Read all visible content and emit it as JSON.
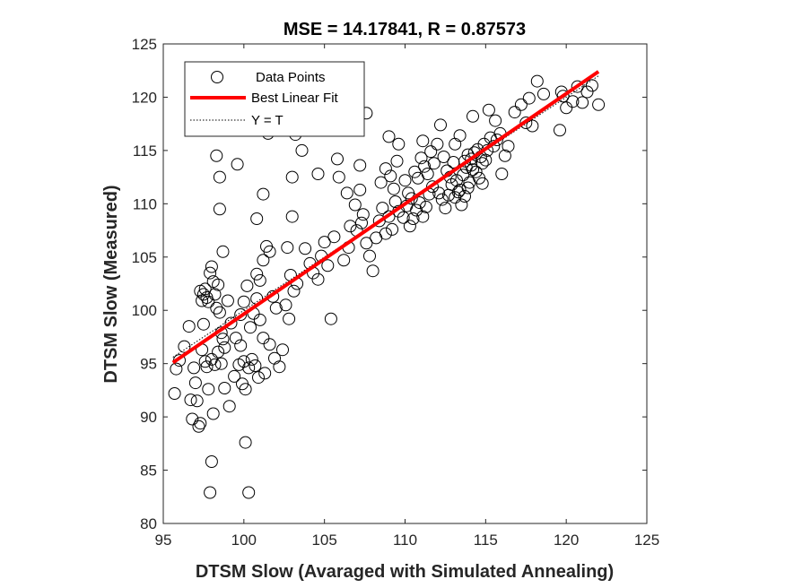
{
  "chart_data": {
    "type": "scatter",
    "title": "MSE = 14.17841, R = 0.87573",
    "xlabel": "DTSM Slow (Avaraged with Simulated Annealing)",
    "ylabel": "DTSM Slow (Measured)",
    "xlim": [
      95,
      125
    ],
    "ylim": [
      80,
      125
    ],
    "xticks": [
      "95",
      "100",
      "105",
      "110",
      "115",
      "120",
      "125"
    ],
    "yticks": [
      "80",
      "85",
      "90",
      "95",
      "100",
      "105",
      "110",
      "115",
      "120",
      "125"
    ],
    "grid": false,
    "legend_position": "top-left",
    "colors": {
      "points": "#000000",
      "fit": "#ff0000",
      "identity": "#000000",
      "axes": "#262626"
    },
    "series": [
      {
        "name": "Data Points",
        "kind": "scatter",
        "points": [
          [
            95.7,
            92.2
          ],
          [
            95.8,
            94.5
          ],
          [
            96.0,
            95.3
          ],
          [
            96.3,
            96.6
          ],
          [
            96.6,
            98.5
          ],
          [
            96.7,
            91.6
          ],
          [
            96.8,
            89.8
          ],
          [
            96.9,
            94.6
          ],
          [
            97.0,
            93.2
          ],
          [
            97.1,
            91.5
          ],
          [
            97.2,
            89.1
          ],
          [
            97.3,
            89.4
          ],
          [
            97.4,
            96.3
          ],
          [
            97.5,
            98.7
          ],
          [
            97.6,
            95.2
          ],
          [
            97.7,
            94.7
          ],
          [
            97.8,
            92.6
          ],
          [
            97.9,
            82.9
          ],
          [
            98.0,
            85.8
          ],
          [
            98.1,
            90.3
          ],
          [
            97.3,
            101.8
          ],
          [
            97.4,
            100.9
          ],
          [
            97.5,
            101.5
          ],
          [
            97.6,
            102.0
          ],
          [
            97.7,
            101.2
          ],
          [
            97.8,
            100.8
          ],
          [
            97.9,
            103.5
          ],
          [
            98.0,
            104.1
          ],
          [
            98.1,
            102.7
          ],
          [
            98.2,
            101.5
          ],
          [
            98.3,
            100.2
          ],
          [
            98.4,
            102.4
          ],
          [
            98.5,
            99.8
          ],
          [
            98.6,
            97.9
          ],
          [
            98.7,
            97.3
          ],
          [
            98.8,
            96.5
          ],
          [
            98.0,
            95.4
          ],
          [
            98.2,
            94.9
          ],
          [
            98.4,
            96.1
          ],
          [
            98.6,
            95.0
          ],
          [
            98.7,
            105.5
          ],
          [
            98.5,
            109.5
          ],
          [
            98.5,
            112.5
          ],
          [
            98.3,
            114.5
          ],
          [
            99.6,
            113.7
          ],
          [
            99.0,
            100.9
          ],
          [
            99.2,
            98.8
          ],
          [
            99.5,
            97.4
          ],
          [
            99.8,
            96.7
          ],
          [
            100.0,
            95.2
          ],
          [
            98.8,
            92.7
          ],
          [
            99.1,
            91.0
          ],
          [
            99.4,
            93.8
          ],
          [
            99.7,
            94.9
          ],
          [
            99.9,
            93.1
          ],
          [
            100.1,
            92.6
          ],
          [
            100.3,
            94.6
          ],
          [
            100.5,
            95.4
          ],
          [
            100.7,
            94.8
          ],
          [
            100.9,
            93.7
          ],
          [
            100.1,
            87.6
          ],
          [
            100.3,
            82.9
          ],
          [
            99.8,
            99.6
          ],
          [
            100.0,
            100.8
          ],
          [
            100.2,
            102.3
          ],
          [
            100.4,
            98.4
          ],
          [
            100.6,
            99.7
          ],
          [
            100.8,
            101.1
          ],
          [
            101.0,
            99.1
          ],
          [
            101.2,
            97.4
          ],
          [
            100.8,
            103.4
          ],
          [
            101.0,
            102.8
          ],
          [
            101.2,
            104.7
          ],
          [
            101.4,
            106.0
          ],
          [
            101.6,
            105.5
          ],
          [
            101.8,
            101.3
          ],
          [
            102.0,
            100.2
          ],
          [
            101.3,
            94.1
          ],
          [
            101.6,
            96.8
          ],
          [
            101.9,
            95.5
          ],
          [
            100.8,
            108.6
          ],
          [
            101.2,
            110.9
          ],
          [
            101.5,
            116.6
          ],
          [
            102.2,
            94.7
          ],
          [
            102.4,
            96.3
          ],
          [
            102.6,
            100.5
          ],
          [
            102.8,
            99.2
          ],
          [
            102.9,
            103.3
          ],
          [
            103.1,
            101.8
          ],
          [
            103.3,
            102.5
          ],
          [
            103.0,
            112.5
          ],
          [
            103.2,
            116.5
          ],
          [
            102.7,
            105.9
          ],
          [
            103.0,
            108.8
          ],
          [
            103.4,
            117.5
          ],
          [
            103.6,
            115.0
          ],
          [
            103.8,
            105.8
          ],
          [
            104.1,
            104.4
          ],
          [
            104.3,
            103.5
          ],
          [
            104.6,
            102.9
          ],
          [
            104.8,
            105.1
          ],
          [
            105.0,
            106.4
          ],
          [
            105.2,
            104.2
          ],
          [
            105.4,
            99.2
          ],
          [
            105.6,
            106.9
          ],
          [
            105.8,
            114.2
          ],
          [
            105.9,
            112.5
          ],
          [
            106.2,
            104.7
          ],
          [
            106.5,
            105.9
          ],
          [
            106.6,
            107.9
          ],
          [
            104.6,
            112.8
          ],
          [
            107.0,
            107.5
          ],
          [
            107.3,
            108.2
          ],
          [
            107.6,
            106.3
          ],
          [
            107.8,
            105.1
          ],
          [
            108.0,
            103.7
          ],
          [
            108.2,
            106.8
          ],
          [
            106.9,
            109.9
          ],
          [
            107.2,
            111.3
          ],
          [
            107.4,
            109.0
          ],
          [
            107.6,
            118.5
          ],
          [
            107.2,
            113.6
          ],
          [
            106.4,
            111.0
          ],
          [
            108.4,
            108.4
          ],
          [
            108.6,
            109.6
          ],
          [
            108.8,
            107.2
          ],
          [
            109.0,
            108.8
          ],
          [
            109.2,
            107.6
          ],
          [
            109.4,
            110.2
          ],
          [
            109.6,
            109.3
          ],
          [
            108.5,
            112.0
          ],
          [
            108.8,
            113.3
          ],
          [
            109.1,
            112.6
          ],
          [
            109.3,
            111.4
          ],
          [
            109.5,
            114.0
          ],
          [
            109.0,
            116.3
          ],
          [
            109.6,
            115.6
          ],
          [
            110.0,
            112.2
          ],
          [
            110.2,
            111.0
          ],
          [
            110.4,
            110.5
          ],
          [
            109.9,
            108.7
          ],
          [
            110.1,
            109.8
          ],
          [
            110.3,
            107.9
          ],
          [
            110.5,
            108.6
          ],
          [
            110.7,
            109.4
          ],
          [
            110.9,
            110.1
          ],
          [
            111.1,
            108.8
          ],
          [
            111.3,
            109.7
          ],
          [
            111.5,
            110.9
          ],
          [
            111.7,
            111.6
          ],
          [
            110.6,
            113.0
          ],
          [
            110.8,
            112.4
          ],
          [
            111.0,
            114.3
          ],
          [
            111.2,
            113.5
          ],
          [
            111.4,
            112.8
          ],
          [
            111.6,
            114.9
          ],
          [
            111.8,
            113.8
          ],
          [
            112.0,
            115.6
          ],
          [
            112.2,
            117.4
          ],
          [
            112.4,
            114.4
          ],
          [
            111.1,
            115.9
          ],
          [
            112.6,
            113.1
          ],
          [
            112.8,
            112.5
          ],
          [
            113.0,
            113.9
          ],
          [
            113.2,
            112.2
          ],
          [
            113.4,
            111.3
          ],
          [
            113.6,
            112.7
          ],
          [
            113.8,
            113.4
          ],
          [
            114.0,
            112.0
          ],
          [
            114.2,
            113.2
          ],
          [
            112.1,
            111.0
          ],
          [
            112.3,
            110.4
          ],
          [
            112.5,
            109.6
          ],
          [
            112.7,
            110.8
          ],
          [
            112.9,
            111.8
          ],
          [
            113.1,
            110.6
          ],
          [
            113.3,
            111.1
          ],
          [
            113.5,
            109.9
          ],
          [
            113.7,
            110.7
          ],
          [
            113.9,
            111.5
          ],
          [
            114.1,
            114.2
          ],
          [
            114.3,
            114.8
          ],
          [
            114.5,
            115.1
          ],
          [
            114.7,
            114.4
          ],
          [
            114.9,
            115.6
          ],
          [
            115.1,
            115.0
          ],
          [
            115.3,
            116.2
          ],
          [
            115.5,
            115.4
          ],
          [
            115.7,
            116.0
          ],
          [
            115.9,
            116.6
          ],
          [
            113.7,
            114.0
          ],
          [
            113.9,
            114.6
          ],
          [
            114.1,
            113.6
          ],
          [
            114.4,
            113.0
          ],
          [
            114.6,
            112.4
          ],
          [
            114.8,
            113.8
          ],
          [
            115.0,
            114.1
          ],
          [
            113.1,
            115.6
          ],
          [
            113.4,
            116.4
          ],
          [
            114.2,
            118.2
          ],
          [
            115.2,
            118.8
          ],
          [
            115.6,
            117.8
          ],
          [
            114.8,
            111.9
          ],
          [
            116.2,
            114.5
          ],
          [
            116.4,
            115.4
          ],
          [
            116.0,
            112.8
          ],
          [
            116.8,
            118.6
          ],
          [
            117.2,
            119.3
          ],
          [
            117.5,
            117.6
          ],
          [
            117.7,
            119.9
          ],
          [
            117.9,
            117.3
          ],
          [
            118.2,
            121.5
          ],
          [
            119.6,
            116.9
          ],
          [
            119.8,
            120.1
          ],
          [
            120.0,
            119.0
          ],
          [
            120.4,
            119.6
          ],
          [
            120.7,
            121.0
          ],
          [
            121.0,
            119.5
          ],
          [
            121.3,
            120.5
          ],
          [
            121.6,
            121.1
          ],
          [
            122.0,
            119.3
          ],
          [
            119.7,
            120.5
          ],
          [
            118.6,
            120.3
          ]
        ]
      },
      {
        "name": "Best Linear Fit",
        "kind": "line",
        "points": [
          [
            95.6,
            95.1
          ],
          [
            122.0,
            122.4
          ]
        ]
      },
      {
        "name": "Y = T",
        "kind": "line",
        "points": [
          [
            95.6,
            95.6
          ],
          [
            122.0,
            122.0
          ]
        ]
      }
    ]
  }
}
